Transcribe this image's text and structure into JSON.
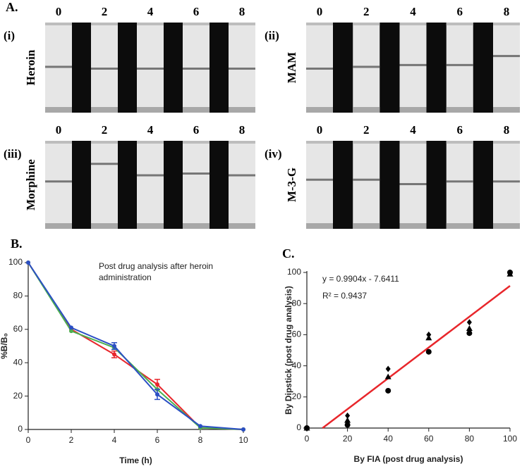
{
  "panel_a": {
    "label": "A.",
    "panels": [
      {
        "numeral": "(i)",
        "drug": "Heroin",
        "strip_labels": [
          "0",
          "2",
          "4",
          "6",
          "8"
        ]
      },
      {
        "numeral": "(ii)",
        "drug": "MAM",
        "strip_labels": [
          "0",
          "2",
          "4",
          "6",
          "8"
        ]
      },
      {
        "numeral": "(iii)",
        "drug": "Morphine",
        "strip_labels": [
          "0",
          "2",
          "4",
          "6",
          "8"
        ]
      },
      {
        "numeral": "(iv)",
        "drug": "M-3-G",
        "strip_labels": [
          "0",
          "2",
          "4",
          "6",
          "8"
        ]
      }
    ]
  },
  "chart_data": [
    {
      "type": "line",
      "panel_label": "B.",
      "annotation": [
        "Post drug analysis after heroin",
        "administration"
      ],
      "xlabel": "Time (h)",
      "ylabel": "%B/B₀",
      "x": [
        0,
        2,
        4,
        6,
        8,
        10
      ],
      "series": [
        {
          "color": "#e8262b",
          "values": [
            100,
            60,
            45,
            27,
            1,
            0
          ],
          "errors": [
            null,
            null,
            2,
            3,
            null,
            null
          ]
        },
        {
          "color": "#4caf50",
          "values": [
            100,
            59,
            49,
            24,
            1,
            0
          ],
          "errors": [
            null,
            null,
            null,
            null,
            null,
            null
          ]
        },
        {
          "color": "#2b4fc4",
          "values": [
            100,
            61,
            50,
            21,
            2,
            0
          ],
          "errors": [
            null,
            null,
            2,
            3,
            null,
            null
          ]
        }
      ],
      "xlim": [
        0,
        10
      ],
      "ylim": [
        0,
        100
      ],
      "xticks": [
        0,
        2,
        4,
        6,
        8,
        10
      ],
      "yticks": [
        0,
        20,
        40,
        60,
        80,
        100
      ]
    },
    {
      "type": "scatter",
      "panel_label": "C.",
      "xlabel": "By FIA (post drug analysis)",
      "ylabel": "By Dipstick (post drug analysis)",
      "x": [
        0,
        20,
        40,
        60,
        80,
        100
      ],
      "series": [
        {
          "marker": "circle",
          "color": "#000000",
          "values": [
            0,
            2,
            24,
            49,
            61,
            100
          ]
        },
        {
          "marker": "triangle",
          "color": "#000000",
          "values": [
            0,
            5,
            33,
            58,
            64,
            99
          ]
        },
        {
          "marker": "diamond",
          "color": "#000000",
          "values": [
            0,
            8,
            38,
            60,
            68,
            100
          ]
        }
      ],
      "fit": {
        "label": "y = 0.9904x - 7.6411",
        "r2_label": "R² = 0.9437",
        "slope": 0.9904,
        "intercept": -7.6411,
        "color": "#e8262b"
      },
      "xlim": [
        0,
        100
      ],
      "ylim": [
        0,
        100
      ],
      "xticks": [
        0,
        20,
        40,
        60,
        80,
        100
      ],
      "yticks": [
        0,
        20,
        40,
        60,
        80,
        100
      ]
    }
  ]
}
